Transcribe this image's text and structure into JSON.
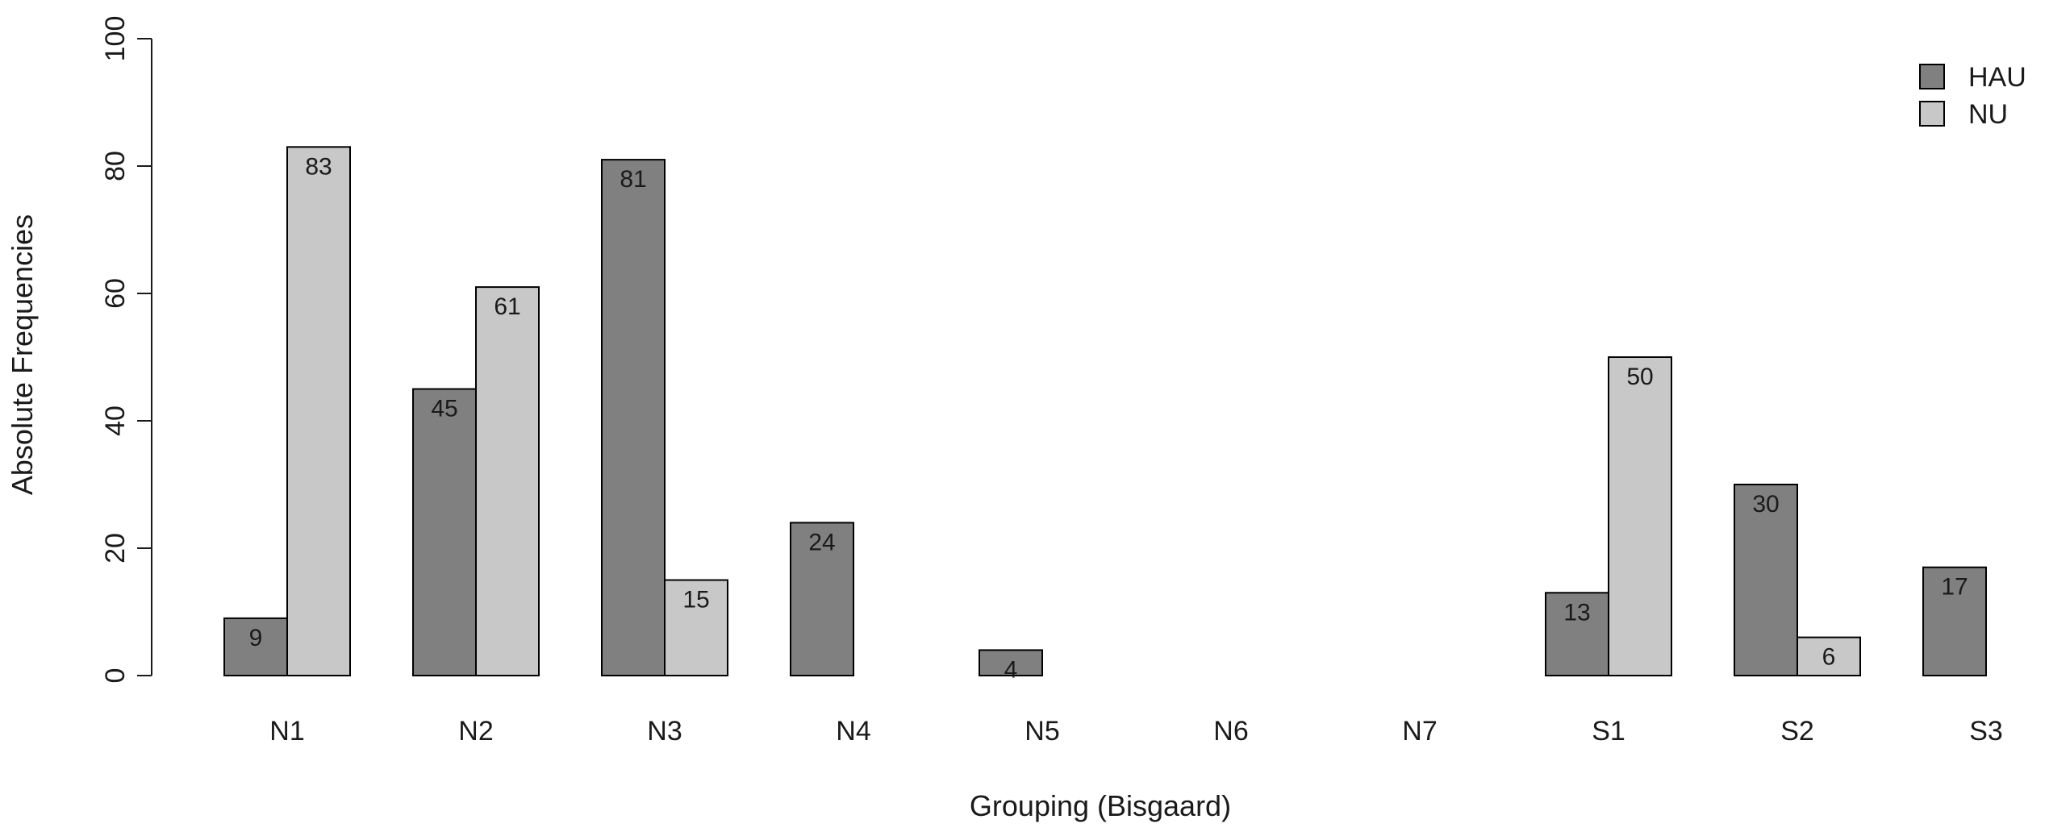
{
  "chart_data": {
    "type": "bar",
    "categories": [
      "N1",
      "N2",
      "N3",
      "N4",
      "N5",
      "N6",
      "N7",
      "S1",
      "S2",
      "S3"
    ],
    "series": [
      {
        "name": "HAU",
        "color": "#808080",
        "values": [
          9,
          45,
          81,
          24,
          4,
          0,
          0,
          13,
          30,
          17
        ]
      },
      {
        "name": "NU",
        "color": "#c8c8c8",
        "values": [
          83,
          61,
          15,
          0,
          0,
          0,
          0,
          50,
          6,
          0
        ]
      }
    ],
    "value_labels": [
      [
        "9",
        "45",
        "81",
        "24",
        "4",
        null,
        null,
        "13",
        "30",
        "17"
      ],
      [
        "83",
        "61",
        "15",
        null,
        null,
        null,
        null,
        "50",
        "6",
        null
      ]
    ],
    "title": "",
    "xlabel": "Grouping (Bisgaard)",
    "ylabel": "Absolute Frequencies",
    "ylim": [
      0,
      100
    ],
    "yticks": [
      "0",
      "20",
      "40",
      "60",
      "80",
      "100"
    ],
    "grid": false,
    "legend_position": "top-right"
  }
}
